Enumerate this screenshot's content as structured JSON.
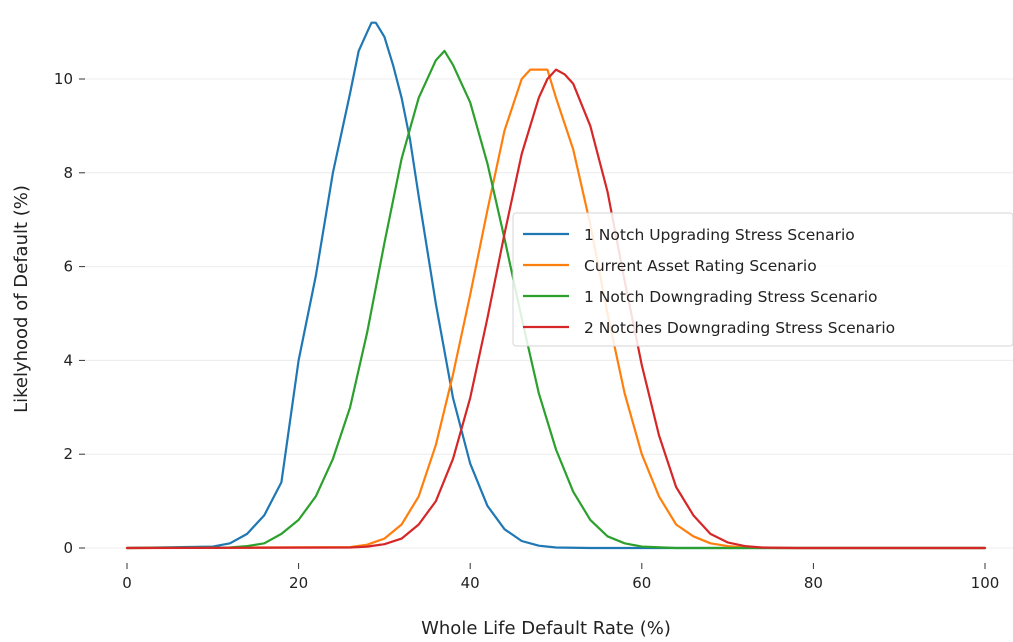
{
  "chart_data": {
    "type": "line",
    "xlabel": "Whole Life Default Rate (%)",
    "ylabel": "Likelyhood of Default (%)",
    "xlim": [
      0,
      100
    ],
    "ylim": [
      0,
      11.5
    ],
    "xticks": [
      0,
      20,
      40,
      60,
      80,
      100
    ],
    "yticks": [
      0,
      2,
      4,
      6,
      8,
      10
    ],
    "grid": "horizontal",
    "legend_position": "center-right",
    "series": [
      {
        "name": "1 Notch Upgrading Stress Scenario",
        "color": "#1f77b4",
        "x": [
          0,
          10,
          12,
          14,
          16,
          18,
          20,
          22,
          24,
          26,
          27,
          28,
          28.5,
          29,
          30,
          31,
          32,
          33,
          34,
          36,
          38,
          40,
          42,
          44,
          46,
          48,
          50,
          54,
          60,
          100
        ],
        "y": [
          0,
          0.03,
          0.1,
          0.3,
          0.7,
          1.4,
          4.0,
          5.8,
          8.0,
          9.7,
          10.6,
          11.0,
          11.2,
          11.2,
          10.9,
          10.3,
          9.6,
          8.7,
          7.5,
          5.2,
          3.2,
          1.8,
          0.9,
          0.4,
          0.15,
          0.05,
          0.01,
          0,
          0,
          0
        ]
      },
      {
        "name": "Current Asset Rating Scenario",
        "color": "#ff7f0e",
        "x": [
          0,
          26,
          28,
          30,
          32,
          34,
          36,
          38,
          40,
          42,
          44,
          46,
          47,
          48,
          49,
          50,
          52,
          54,
          56,
          58,
          60,
          62,
          64,
          66,
          68,
          70,
          72,
          76,
          100
        ],
        "y": [
          0,
          0.02,
          0.07,
          0.2,
          0.5,
          1.1,
          2.2,
          3.7,
          5.4,
          7.2,
          8.9,
          10.0,
          10.2,
          10.2,
          10.2,
          9.6,
          8.5,
          6.9,
          5.0,
          3.3,
          2.0,
          1.1,
          0.5,
          0.25,
          0.1,
          0.04,
          0.01,
          0,
          0
        ]
      },
      {
        "name": "1 Notch Downgrading Stress Scenario",
        "color": "#2ca02c",
        "x": [
          0,
          12,
          14,
          16,
          18,
          20,
          22,
          24,
          26,
          28,
          30,
          32,
          34,
          36,
          37,
          38,
          40,
          42,
          44,
          46,
          48,
          50,
          52,
          54,
          56,
          58,
          60,
          64,
          100
        ],
        "y": [
          0,
          0.01,
          0.04,
          0.1,
          0.3,
          0.6,
          1.1,
          1.9,
          3.0,
          4.6,
          6.5,
          8.3,
          9.6,
          10.4,
          10.6,
          10.3,
          9.5,
          8.2,
          6.6,
          4.9,
          3.3,
          2.1,
          1.2,
          0.6,
          0.25,
          0.1,
          0.03,
          0,
          0
        ]
      },
      {
        "name": "2 Notches Downgrading Stress Scenario",
        "color": "#d62728",
        "x": [
          0,
          26,
          28,
          30,
          32,
          34,
          36,
          38,
          40,
          42,
          44,
          46,
          48,
          49,
          50,
          51,
          52,
          54,
          56,
          58,
          60,
          62,
          64,
          66,
          68,
          70,
          72,
          74,
          78,
          100
        ],
        "y": [
          0,
          0.01,
          0.03,
          0.08,
          0.2,
          0.5,
          1.0,
          1.9,
          3.2,
          4.9,
          6.7,
          8.4,
          9.6,
          10.0,
          10.2,
          10.1,
          9.9,
          9.0,
          7.6,
          5.7,
          3.9,
          2.4,
          1.3,
          0.7,
          0.3,
          0.12,
          0.04,
          0.01,
          0,
          0
        ]
      }
    ]
  }
}
